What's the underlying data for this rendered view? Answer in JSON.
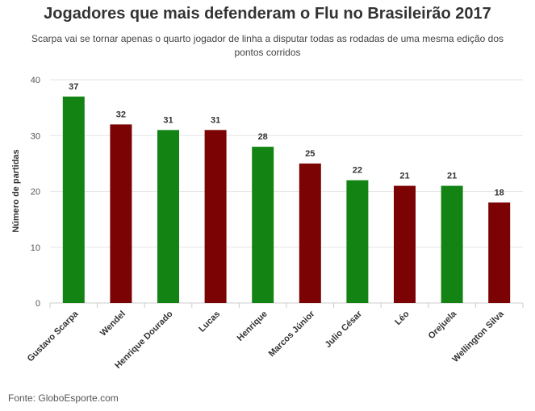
{
  "chart_data": {
    "type": "bar",
    "title": "Jogadores que mais defenderam o Flu no Brasileirão 2017",
    "subtitle": "Scarpa vai se tornar apenas o quarto jogador de linha a disputar todas as rodadas de uma mesma edição dos pontos corridos",
    "ylabel": "Número de partidas",
    "xlabel": "",
    "categories": [
      "Gustavo Scarpa",
      "Wendel",
      "Henrique Dourado",
      "Lucas",
      "Henrique",
      "Marcos Júnior",
      "Julio César",
      "Léo",
      "Orejuela",
      "Wellington Silva"
    ],
    "values": [
      37,
      32,
      31,
      31,
      28,
      25,
      22,
      21,
      21,
      18
    ],
    "bar_colors": [
      "#138313",
      "#7b0304",
      "#138313",
      "#7b0304",
      "#138313",
      "#7b0304",
      "#138313",
      "#7b0304",
      "#138313",
      "#7b0304"
    ],
    "ylim": [
      0,
      40
    ],
    "yticks": [
      0,
      10,
      20,
      30,
      40
    ],
    "grid": true,
    "legend": "none"
  },
  "source": "Fonte: GloboEsporte.com"
}
